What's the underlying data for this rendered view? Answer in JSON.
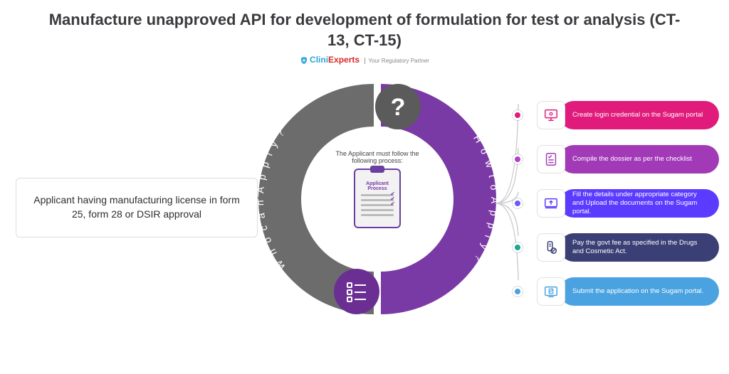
{
  "title": "Manufacture unapproved API for development of formulation for test or analysis (CT-13, CT-15)",
  "brand": {
    "part1": "Clini",
    "part2": "Experts",
    "tagline": "Your Regulatory Partner"
  },
  "left_arc": {
    "label": "Who can Apply?",
    "color": "#6c6c6c",
    "top_icon": "?"
  },
  "right_arc": {
    "label": "How to Apply?",
    "color": "#7a3aa5",
    "bottom_icon": "list"
  },
  "who_box": "Applicant having manufacturing license in form 25, form 28 or DSIR approval",
  "center": {
    "note": "The Applicant must follow the following process:",
    "clip_title": "Applicant Process"
  },
  "steps": [
    {
      "text": "Create login credential on the Sugam portal",
      "dot_color": "#e11b7b",
      "pill_color": "#e11b7b",
      "icon": "screen"
    },
    {
      "text": "Compile the dossier as per the checklist",
      "dot_color": "#b241c9",
      "pill_color": "#a23ab8",
      "icon": "checklist"
    },
    {
      "text": "Fill the details under appropriate category and Upload the documents on the Sugam portal.",
      "dot_color": "#6b5bff",
      "pill_color": "#5a3bff",
      "icon": "upload"
    },
    {
      "text": "Pay the govt fee as specified in the Drugs and Cosmetic Act.",
      "dot_color": "#1aa890",
      "pill_color": "#3a3f75",
      "icon": "pay"
    },
    {
      "text": "Submit the application on the Sugam portal.",
      "dot_color": "#4aa3e0",
      "pill_color": "#4aa3e0",
      "icon": "submit"
    }
  ],
  "styling": {
    "ring_outer": 340,
    "ring_thickness": 62,
    "background": "#ffffff",
    "title_color": "#3b3b3f"
  }
}
